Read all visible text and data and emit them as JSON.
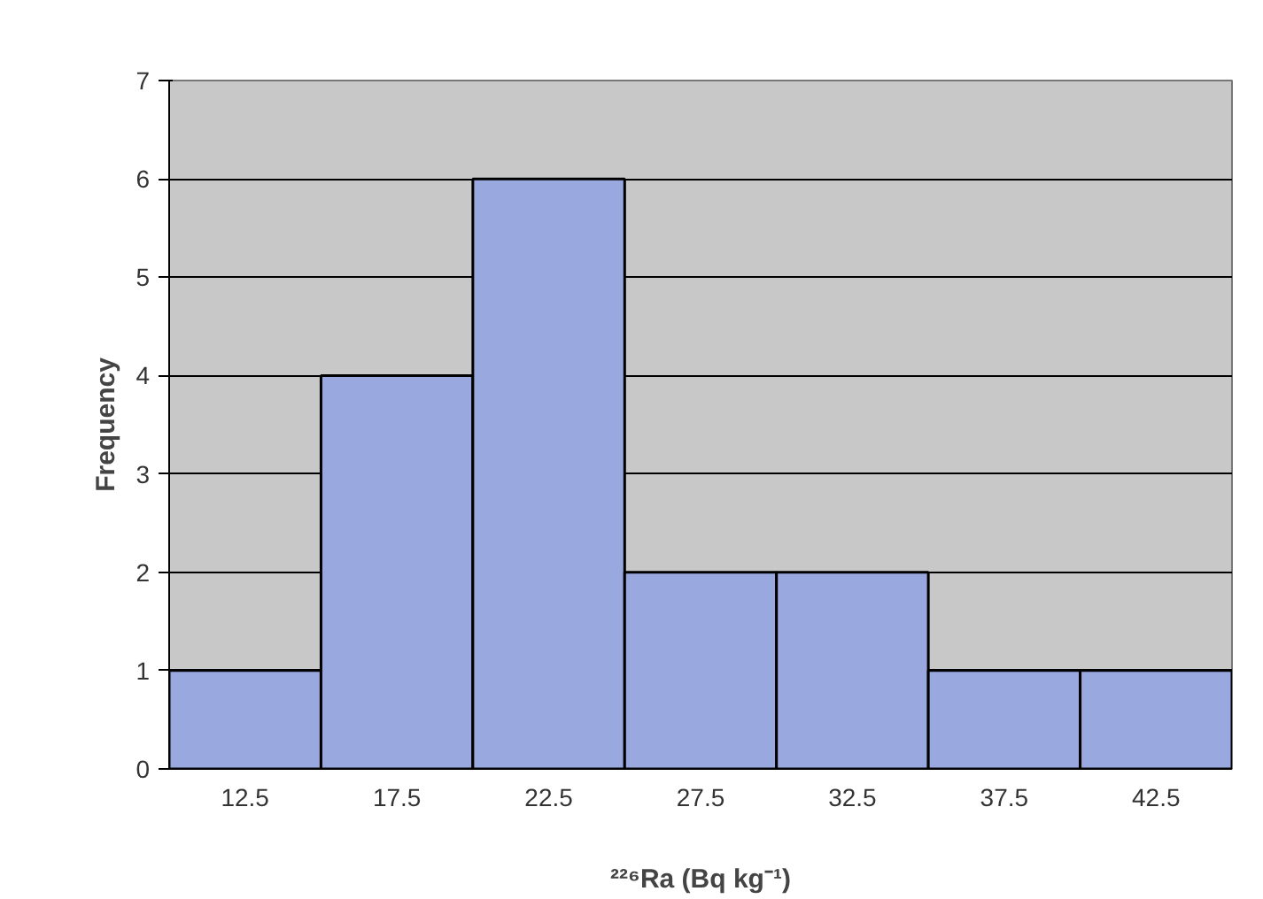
{
  "chart_data": {
    "type": "histogram",
    "xlabel": "²²⁶Ra (Bq kg⁻¹)",
    "ylabel": "Frequency",
    "bins": [
      10,
      15,
      20,
      25,
      30,
      35,
      40,
      45
    ],
    "values": [
      1,
      4,
      6,
      2,
      2,
      1,
      1
    ],
    "color": "#9aa8e0",
    "xlim": [
      10,
      45
    ],
    "xticks": [
      12.5,
      17.5,
      22.5,
      27.5,
      32.5,
      37.5,
      42.5
    ],
    "ylim": [
      0,
      7
    ],
    "yticks": [
      0,
      1,
      2,
      3,
      4,
      5,
      6,
      7
    ],
    "grid": "y"
  }
}
